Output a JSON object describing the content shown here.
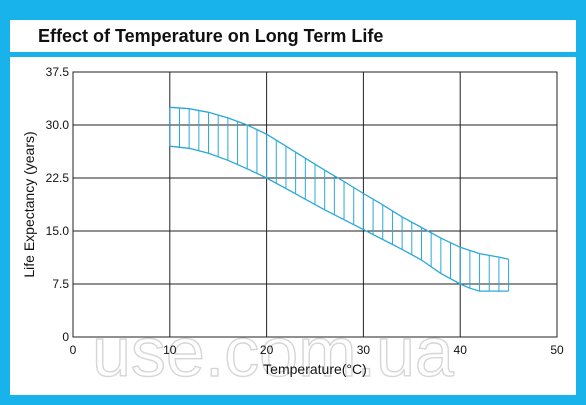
{
  "chart_data": {
    "type": "area",
    "title": "Effect of Temperature on Long Term Life",
    "xlabel": "Temperature(°C)",
    "ylabel": "Life Expectancy (years)",
    "xlim": [
      0,
      50
    ],
    "ylim": [
      0,
      37.5
    ],
    "x_ticks": [
      "0",
      "10",
      "20",
      "30",
      "40",
      "50"
    ],
    "y_ticks": [
      "0",
      "7.5",
      "15.0",
      "22.5",
      "30.0",
      "37.5"
    ],
    "grid": true,
    "band_color": "#2aa8d8",
    "series": [
      {
        "x": [
          10,
          12,
          14,
          16,
          18,
          20,
          22,
          24,
          26,
          28,
          30,
          32,
          34,
          36,
          38,
          40,
          42,
          44,
          45
        ],
        "values": [
          32.5,
          32.3,
          31.8,
          31.0,
          30.0,
          28.7,
          27.0,
          25.3,
          23.6,
          22.0,
          20.3,
          18.7,
          17.0,
          15.5,
          14.0,
          12.7,
          11.8,
          11.3,
          11.0
        ]
      },
      {
        "x": [
          10,
          12,
          14,
          16,
          18,
          20,
          22,
          24,
          26,
          28,
          30,
          32,
          34,
          36,
          38,
          40,
          41,
          42,
          44,
          45
        ],
        "values": [
          27.0,
          26.7,
          26.0,
          25.0,
          23.8,
          22.5,
          21.0,
          19.5,
          18.0,
          16.6,
          15.2,
          13.8,
          12.4,
          10.9,
          9.0,
          7.5,
          6.9,
          6.5,
          6.5,
          6.5
        ]
      }
    ],
    "watermark": "use.com.ua"
  }
}
